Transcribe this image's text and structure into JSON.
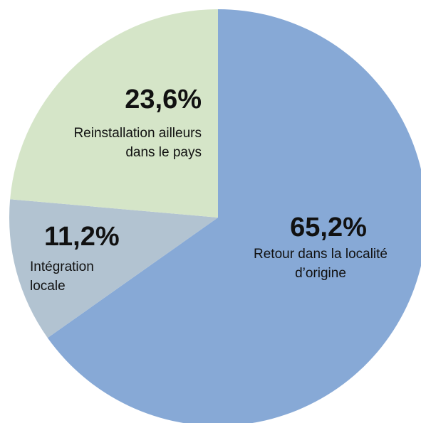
{
  "chart_data": {
    "type": "pie",
    "categories": [
      "Retour dans la localité d’origine",
      "Intégration locale",
      "Reinstallation ailleurs dans le pays"
    ],
    "values": [
      65.2,
      11.2,
      23.6
    ],
    "value_labels": [
      "65,2%",
      "11,2%",
      "23,6%"
    ],
    "colors": [
      "#87a9d6",
      "#b2c3d1",
      "#d5e5c8"
    ]
  }
}
